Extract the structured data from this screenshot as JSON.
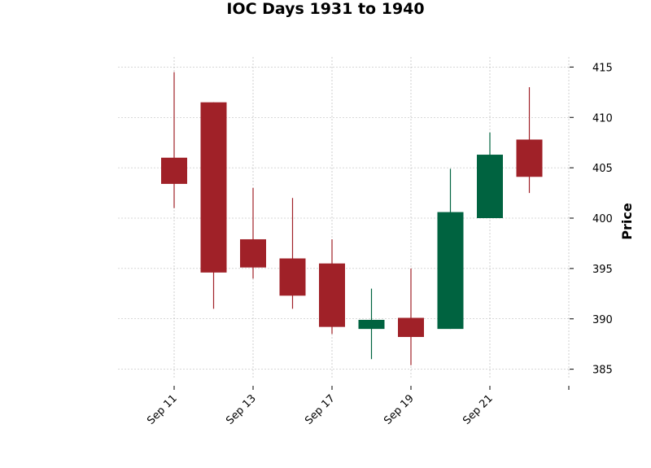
{
  "chart_data": {
    "type": "candlestick",
    "title": "IOC Days 1931 to 1940",
    "ylabel": "Price",
    "xlabel": "",
    "ylim": [
      384,
      416
    ],
    "y_ticks": [
      385,
      390,
      395,
      400,
      405,
      410,
      415
    ],
    "x_tick_labels": [
      {
        "label": "Sep 11",
        "index": 0
      },
      {
        "label": "Sep 13",
        "index": 2
      },
      {
        "label": "Sep 17",
        "index": 4
      },
      {
        "label": "Sep 19",
        "index": 6
      },
      {
        "label": "Sep 21",
        "index": 8
      },
      {
        "label": "",
        "index": 10
      }
    ],
    "grid": true,
    "colors": {
      "up": "#006340",
      "down": "#a02128",
      "grid": "#b0b0b0"
    },
    "candles": [
      {
        "open": 406.0,
        "high": 414.5,
        "low": 401.0,
        "close": 403.4
      },
      {
        "open": 411.5,
        "high": 411.5,
        "low": 391.0,
        "close": 394.6
      },
      {
        "open": 397.9,
        "high": 403.0,
        "low": 394.0,
        "close": 395.1
      },
      {
        "open": 396.0,
        "high": 402.0,
        "low": 391.0,
        "close": 392.3
      },
      {
        "open": 395.5,
        "high": 397.9,
        "low": 388.5,
        "close": 389.2
      },
      {
        "open": 389.0,
        "high": 393.0,
        "low": 386.0,
        "close": 389.9
      },
      {
        "open": 390.1,
        "high": 395.0,
        "low": 385.4,
        "close": 388.2
      },
      {
        "open": 389.0,
        "high": 404.9,
        "low": 389.0,
        "close": 400.6
      },
      {
        "open": 400.0,
        "high": 408.5,
        "low": 400.0,
        "close": 406.3
      },
      {
        "open": 407.8,
        "high": 413.0,
        "low": 402.5,
        "close": 404.1
      }
    ]
  }
}
